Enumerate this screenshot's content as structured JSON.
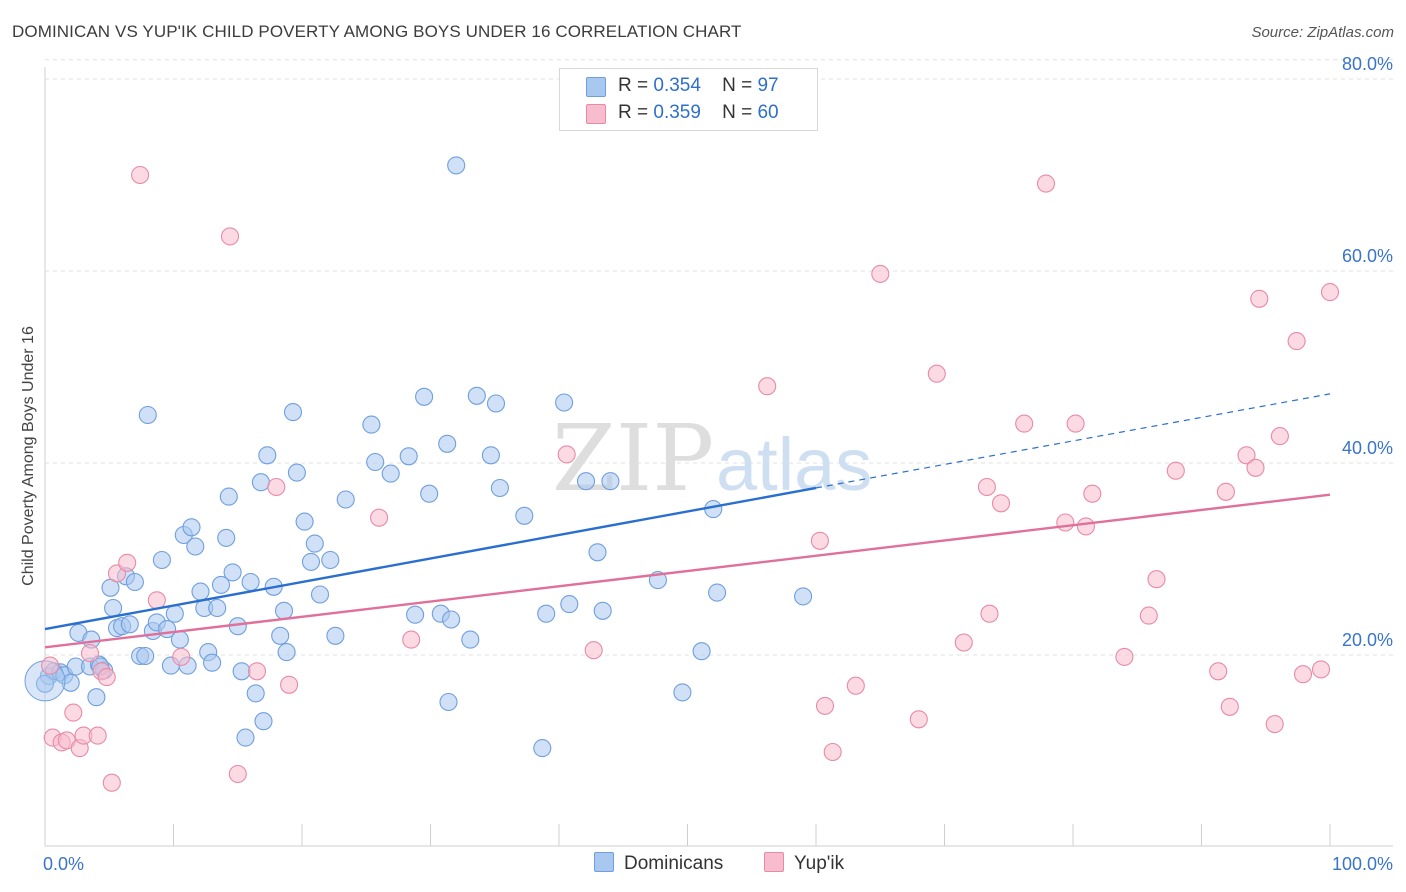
{
  "header": {
    "title": "DOMINICAN VS YUP'IK CHILD POVERTY AMONG BOYS UNDER 16 CORRELATION CHART",
    "source": "Source: ZipAtlas.com"
  },
  "watermark": {
    "zip": "ZIP",
    "atlas": "atlas"
  },
  "legend": {
    "rows": [
      {
        "r_label": "R =",
        "r_value": "0.354",
        "n_label": "N =",
        "n_value": "97",
        "color": "#a9c8f0",
        "border": "#6f9fdd"
      },
      {
        "r_label": "R =",
        "r_value": "0.359",
        "n_label": "N =",
        "n_value": "60",
        "color": "#f7bccd",
        "border": "#e88aa6"
      }
    ]
  },
  "bottom_legend": {
    "items": [
      {
        "label": "Dominicans",
        "color": "#a9c8f0",
        "border": "#6f9fdd"
      },
      {
        "label": "Yup'ik",
        "color": "#f7bccd",
        "border": "#e88aa6"
      }
    ]
  },
  "chart_data": {
    "type": "scatter",
    "title": "DOMINICAN VS YUP'IK CHILD POVERTY AMONG BOYS UNDER 16 CORRELATION CHART",
    "xlabel": "",
    "ylabel": "Child Poverty Among Boys Under 16",
    "xlim": [
      0,
      100
    ],
    "ylim": [
      0,
      82
    ],
    "x_tick_labels": [
      "0.0%",
      "100.0%"
    ],
    "y_tick_labels": [
      "20.0%",
      "40.0%",
      "60.0%",
      "80.0%"
    ],
    "y_ticks": [
      20,
      40,
      60,
      80
    ],
    "grid": "horizontal dashed",
    "legend_position": "top-center",
    "series": [
      {
        "name": "Dominicans",
        "color": "#6f9fdd",
        "fill": "#a9c8f0",
        "trend": {
          "x0": 0,
          "y0": 22.7,
          "x1": 60,
          "y1": 37.4,
          "dashed_to_x": 100,
          "dashed_to_y": 47.2,
          "color": "#2a6fd0"
        },
        "points": [
          [
            0.3,
            17.8
          ],
          [
            0.7,
            18.3
          ],
          [
            1.2,
            18.2
          ],
          [
            1.5,
            17.9
          ],
          [
            2.0,
            17.1
          ],
          [
            2.4,
            18.8
          ],
          [
            2.6,
            22.3
          ],
          [
            3.5,
            18.8
          ],
          [
            3.6,
            21.6
          ],
          [
            4.0,
            15.6
          ],
          [
            4.2,
            19.0
          ],
          [
            4.6,
            18.4
          ],
          [
            5.1,
            27.0
          ],
          [
            5.3,
            24.9
          ],
          [
            5.6,
            22.8
          ],
          [
            6.0,
            23.0
          ],
          [
            6.3,
            28.2
          ],
          [
            6.6,
            23.2
          ],
          [
            7.0,
            27.6
          ],
          [
            7.4,
            19.9
          ],
          [
            7.8,
            19.9
          ],
          [
            8.0,
            45.0
          ],
          [
            8.4,
            22.5
          ],
          [
            8.7,
            23.4
          ],
          [
            9.1,
            29.9
          ],
          [
            9.5,
            22.7
          ],
          [
            9.8,
            18.9
          ],
          [
            10.1,
            24.3
          ],
          [
            10.5,
            21.6
          ],
          [
            10.8,
            32.5
          ],
          [
            11.1,
            18.9
          ],
          [
            11.4,
            33.3
          ],
          [
            11.7,
            31.3
          ],
          [
            12.1,
            26.6
          ],
          [
            12.4,
            24.9
          ],
          [
            12.7,
            20.3
          ],
          [
            13.0,
            19.2
          ],
          [
            13.4,
            24.9
          ],
          [
            13.7,
            27.3
          ],
          [
            14.1,
            32.2
          ],
          [
            14.3,
            36.5
          ],
          [
            14.6,
            28.6
          ],
          [
            15.0,
            23.0
          ],
          [
            15.3,
            18.3
          ],
          [
            15.6,
            11.4
          ],
          [
            16.0,
            27.6
          ],
          [
            16.4,
            16.0
          ],
          [
            16.8,
            38.0
          ],
          [
            17.0,
            13.1
          ],
          [
            17.3,
            40.8
          ],
          [
            17.8,
            27.1
          ],
          [
            18.3,
            22.0
          ],
          [
            18.6,
            24.6
          ],
          [
            18.8,
            20.3
          ],
          [
            19.3,
            45.3
          ],
          [
            19.6,
            39.0
          ],
          [
            20.2,
            33.9
          ],
          [
            20.7,
            29.7
          ],
          [
            21.0,
            31.6
          ],
          [
            21.4,
            26.3
          ],
          [
            22.2,
            29.9
          ],
          [
            22.6,
            22.0
          ],
          [
            23.4,
            36.2
          ],
          [
            25.4,
            44.0
          ],
          [
            25.7,
            40.1
          ],
          [
            26.9,
            38.9
          ],
          [
            28.3,
            40.7
          ],
          [
            28.8,
            24.2
          ],
          [
            29.5,
            46.9
          ],
          [
            29.9,
            36.8
          ],
          [
            30.8,
            24.3
          ],
          [
            31.3,
            42.0
          ],
          [
            31.4,
            15.1
          ],
          [
            31.6,
            23.7
          ],
          [
            32.0,
            71.0
          ],
          [
            33.1,
            21.6
          ],
          [
            33.6,
            47.0
          ],
          [
            34.7,
            40.8
          ],
          [
            35.1,
            46.2
          ],
          [
            35.4,
            37.4
          ],
          [
            37.3,
            34.5
          ],
          [
            38.7,
            10.3
          ],
          [
            39.0,
            24.3
          ],
          [
            40.4,
            46.3
          ],
          [
            40.8,
            25.3
          ],
          [
            42.1,
            38.1
          ],
          [
            43.0,
            30.7
          ],
          [
            43.4,
            24.6
          ],
          [
            44.0,
            38.1
          ],
          [
            47.7,
            27.8
          ],
          [
            49.6,
            16.1
          ],
          [
            51.1,
            20.4
          ],
          [
            52.0,
            35.2
          ],
          [
            52.3,
            26.5
          ],
          [
            59.0,
            26.1
          ],
          [
            0.0,
            17.0
          ],
          [
            4.3,
            18.8
          ]
        ]
      },
      {
        "name": "Yup'ik",
        "color": "#e88aa6",
        "fill": "#f7bccd",
        "trend": {
          "x0": 0,
          "y0": 20.8,
          "x1": 100,
          "y1": 36.7,
          "color": "#e0709a"
        },
        "points": [
          [
            0.4,
            18.9
          ],
          [
            0.6,
            11.4
          ],
          [
            1.3,
            10.9
          ],
          [
            1.7,
            11.1
          ],
          [
            2.2,
            14.0
          ],
          [
            2.7,
            10.3
          ],
          [
            3.0,
            11.6
          ],
          [
            3.5,
            20.2
          ],
          [
            4.1,
            11.6
          ],
          [
            4.4,
            18.3
          ],
          [
            4.8,
            17.7
          ],
          [
            5.2,
            6.7
          ],
          [
            5.6,
            28.5
          ],
          [
            6.4,
            29.6
          ],
          [
            7.4,
            70.0
          ],
          [
            8.7,
            25.7
          ],
          [
            10.6,
            19.8
          ],
          [
            14.4,
            63.6
          ],
          [
            15.0,
            7.6
          ],
          [
            16.5,
            18.3
          ],
          [
            18.0,
            37.5
          ],
          [
            19.0,
            16.9
          ],
          [
            26.0,
            34.3
          ],
          [
            28.5,
            21.6
          ],
          [
            40.6,
            40.9
          ],
          [
            42.7,
            20.5
          ],
          [
            56.2,
            48.0
          ],
          [
            60.3,
            31.9
          ],
          [
            60.7,
            14.7
          ],
          [
            61.3,
            9.9
          ],
          [
            63.1,
            16.8
          ],
          [
            65.0,
            59.7
          ],
          [
            68.0,
            13.3
          ],
          [
            69.4,
            49.3
          ],
          [
            71.5,
            21.3
          ],
          [
            73.3,
            37.5
          ],
          [
            73.5,
            24.3
          ],
          [
            74.4,
            35.8
          ],
          [
            76.2,
            44.1
          ],
          [
            77.9,
            69.1
          ],
          [
            79.4,
            33.8
          ],
          [
            80.2,
            44.1
          ],
          [
            81.0,
            33.4
          ],
          [
            81.5,
            36.8
          ],
          [
            84.0,
            19.8
          ],
          [
            85.9,
            24.1
          ],
          [
            86.5,
            27.9
          ],
          [
            88.0,
            39.2
          ],
          [
            91.3,
            18.3
          ],
          [
            91.9,
            37.0
          ],
          [
            92.2,
            14.6
          ],
          [
            93.5,
            40.8
          ],
          [
            94.2,
            39.5
          ],
          [
            94.5,
            57.1
          ],
          [
            95.7,
            12.8
          ],
          [
            96.1,
            42.8
          ],
          [
            97.4,
            52.7
          ],
          [
            97.9,
            18.0
          ],
          [
            99.3,
            18.5
          ],
          [
            100.0,
            57.8
          ]
        ]
      }
    ]
  }
}
